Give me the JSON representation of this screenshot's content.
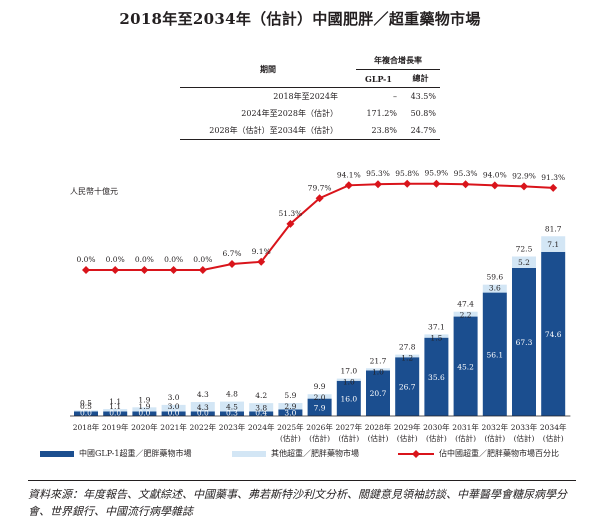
{
  "title": "2018年至2034年（估計）中國肥胖／超重藥物市場",
  "cagr_table": {
    "header_group": "年複合增長率",
    "period_label": "期間",
    "col_glp1": "GLP-1",
    "col_total": "總計",
    "rows": [
      {
        "period": "2018年至2024年",
        "glp1": "–",
        "total": "43.5%"
      },
      {
        "period": "2024年至2028年（估計）",
        "glp1": "171.2%",
        "total": "50.8%"
      },
      {
        "period": "2028年（估計）至2034年（估計）",
        "glp1": "23.8%",
        "total": "24.7%"
      }
    ]
  },
  "chart_data": {
    "type": "bar",
    "ylabel": "人民幣十億元",
    "categories": [
      "2018年",
      "2019年",
      "2020年",
      "2021年",
      "2022年",
      "2023年",
      "2024年",
      "2025年",
      "2026年",
      "2027年",
      "2028年",
      "2029年",
      "2030年",
      "2031年",
      "2032年",
      "2033年",
      "2034年"
    ],
    "category_suffix": [
      "",
      "",
      "",
      "",
      "",
      "",
      "",
      "(估計)",
      "(估計)",
      "(估計)",
      "(估計)",
      "(估計)",
      "(估計)",
      "(估計)",
      "(估計)",
      "(估計)",
      "(估計)"
    ],
    "series": [
      {
        "name": "中國GLP-1超重／肥胖藥物市場",
        "values": [
          0.0,
          0.0,
          0.0,
          0.0,
          0.0,
          0.3,
          0.4,
          3.0,
          7.9,
          16.0,
          20.7,
          26.7,
          35.6,
          45.2,
          56.1,
          67.3,
          74.6
        ],
        "labels": [
          "0.0",
          "0.0",
          "0.0",
          "0.0",
          "0.0",
          "0.3",
          "0.4",
          "3.0",
          "7.9",
          "16.0",
          "20.7",
          "26.7",
          "35.6",
          "45.2",
          "56.1",
          "67.3",
          "74.6"
        ]
      },
      {
        "name": "其他超重／肥胖藥物市場",
        "values": [
          0.5,
          1.1,
          1.9,
          3.0,
          4.3,
          4.5,
          3.8,
          2.9,
          2.0,
          1.0,
          1.0,
          1.2,
          1.5,
          2.2,
          3.6,
          5.2,
          7.1
        ],
        "labels": [
          "0.5",
          "1.1",
          "1.9",
          "3.0",
          "4.3",
          "4.5",
          "3.8",
          "2.9",
          "2.0",
          "1.0",
          "1.0",
          "1.2",
          "1.5",
          "2.2",
          "3.6",
          "5.2",
          "7.1"
        ]
      },
      {
        "name": "佔中國超重／肥胖藥物市場百分比",
        "values": [
          0.0,
          0.0,
          0.0,
          0.0,
          0.0,
          6.7,
          9.1,
          51.3,
          79.7,
          94.1,
          95.3,
          95.8,
          95.9,
          95.3,
          94.0,
          92.9,
          91.3
        ],
        "labels": [
          "0.0%",
          "0.0%",
          "0.0%",
          "0.0%",
          "0.0%",
          "6.7%",
          "9.1%",
          "51.3%",
          "79.7%",
          "94.1%",
          "95.3%",
          "95.8%",
          "95.9%",
          "95.3%",
          "94.0%",
          "92.9%",
          "91.3%"
        ]
      }
    ],
    "totals": [
      "0.5",
      "1.1",
      "1.9",
      "3.0",
      "4.3",
      "4.8",
      "4.2",
      "5.9",
      "9.9",
      "17.0",
      "21.7",
      "27.8",
      "37.1",
      "47.4",
      "59.6",
      "72.5",
      "81.7"
    ],
    "colors": {
      "glp1": "#1b4e8f",
      "other": "#d3e6f5",
      "line": "#d9141b",
      "text": "#231f20"
    }
  },
  "source_note": "資料來源：年度報告、文獻綜述、中國藥事、弗若斯特沙利文分析、關鍵意見領袖訪談、中華醫學會糖尿病學分會、世界銀行、中國流行病學雜誌"
}
